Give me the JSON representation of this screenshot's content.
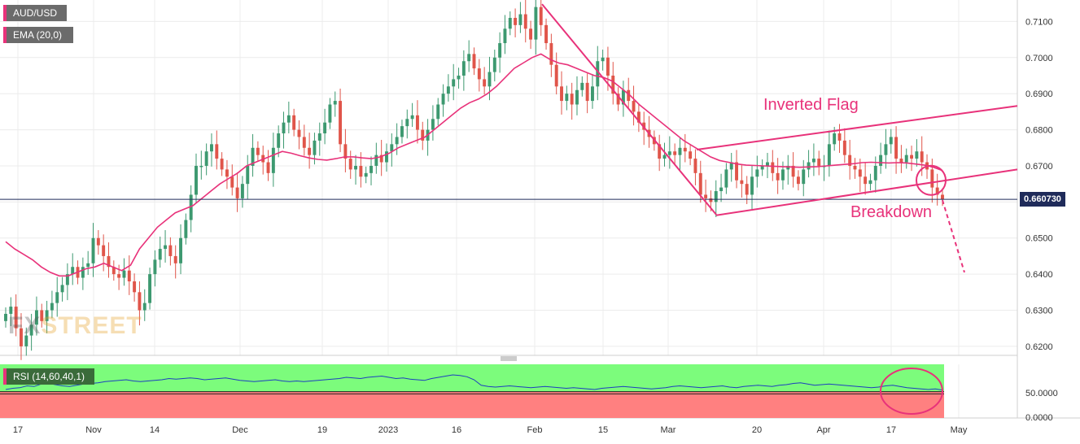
{
  "legend": {
    "pair": "AUD/USD",
    "ema": "EMA (20,0)",
    "rsi": "RSI (14,60,40,1)"
  },
  "colors": {
    "bull": "#3d9970",
    "bear": "#e0554a",
    "ema": "#e8327a",
    "annotation": "#e8327a",
    "rsi_line": "#1d3fbf",
    "rsi_upper_zone": "#7cfc7c",
    "rsi_lower_zone": "#ff8080",
    "price_line": "#1f2b5a"
  },
  "watermark": {
    "fx": "FX",
    "rest": "STREET"
  },
  "annotations": {
    "flag": "Inverted Flag",
    "breakdown": "Breakdown"
  },
  "current_price": "0.660730",
  "chart_data": [
    {
      "type": "candlestick",
      "title": "AUD/USD",
      "x_tick_labels": [
        "17",
        "Nov",
        "14",
        "Dec",
        "19",
        "2023",
        "16",
        "Feb",
        "15",
        "Mar",
        "20",
        "Apr",
        "17",
        "May"
      ],
      "y_ticks": [
        "0.7100",
        "0.7000",
        "0.6900",
        "0.6800",
        "0.6700",
        "0.6600",
        "0.6500",
        "0.6400",
        "0.6300",
        "0.6200"
      ],
      "ylim": [
        0.6175,
        0.7155
      ],
      "grid": true,
      "series": [
        {
          "name": "AUD/USD",
          "close": [
            0.629,
            0.631,
            0.625,
            0.62,
            0.623,
            0.626,
            0.63,
            0.627,
            0.63,
            0.632,
            0.635,
            0.637,
            0.64,
            0.642,
            0.639,
            0.642,
            0.643,
            0.65,
            0.648,
            0.645,
            0.642,
            0.64,
            0.639,
            0.641,
            0.638,
            0.635,
            0.63,
            0.632,
            0.64,
            0.644,
            0.647,
            0.648,
            0.645,
            0.643,
            0.65,
            0.655,
            0.662,
            0.67,
            0.67,
            0.674,
            0.676,
            0.672,
            0.669,
            0.667,
            0.664,
            0.661,
            0.665,
            0.67,
            0.675,
            0.673,
            0.671,
            0.668,
            0.675,
            0.679,
            0.682,
            0.684,
            0.68,
            0.678,
            0.675,
            0.673,
            0.677,
            0.679,
            0.682,
            0.687,
            0.688,
            0.676,
            0.672,
            0.669,
            0.67,
            0.667,
            0.668,
            0.67,
            0.673,
            0.671,
            0.674,
            0.676,
            0.678,
            0.681,
            0.683,
            0.684,
            0.68,
            0.677,
            0.68,
            0.683,
            0.687,
            0.69,
            0.692,
            0.694,
            0.695,
            0.699,
            0.701,
            0.697,
            0.694,
            0.692,
            0.696,
            0.7,
            0.704,
            0.708,
            0.711,
            0.709,
            0.712,
            0.708,
            0.705,
            0.714,
            0.709,
            0.704,
            0.698,
            0.692,
            0.688,
            0.69,
            0.687,
            0.691,
            0.693,
            0.688,
            0.692,
            0.699,
            0.7,
            0.695,
            0.69,
            0.687,
            0.691,
            0.688,
            0.685,
            0.682,
            0.68,
            0.678,
            0.676,
            0.672,
            0.673,
            0.674,
            0.673,
            0.675,
            0.674,
            0.672,
            0.668,
            0.662,
            0.661,
            0.66,
            0.663,
            0.664,
            0.669,
            0.671,
            0.666,
            0.665,
            0.662,
            0.667,
            0.669,
            0.67,
            0.671,
            0.668,
            0.666,
            0.669,
            0.67,
            0.667,
            0.665,
            0.669,
            0.671,
            0.672,
            0.67,
            0.67,
            0.676,
            0.679,
            0.677,
            0.673,
            0.67,
            0.669,
            0.667,
            0.665,
            0.666,
            0.67,
            0.673,
            0.676,
            0.678,
            0.672,
            0.671,
            0.673,
            0.672,
            0.674,
            0.671,
            0.669,
            0.664,
            0.662,
            0.6607
          ],
          "open": [
            0.627,
            0.629,
            0.631,
            0.625,
            0.62,
            0.623,
            0.626,
            0.63,
            0.627,
            0.63,
            0.632,
            0.635,
            0.637,
            0.64,
            0.642,
            0.639,
            0.642,
            0.643,
            0.65,
            0.648,
            0.645,
            0.642,
            0.64,
            0.639,
            0.641,
            0.638,
            0.635,
            0.63,
            0.632,
            0.64,
            0.644,
            0.647,
            0.648,
            0.645,
            0.643,
            0.65,
            0.655,
            0.662,
            0.67,
            0.67,
            0.674,
            0.676,
            0.672,
            0.669,
            0.667,
            0.664,
            0.661,
            0.665,
            0.67,
            0.675,
            0.673,
            0.671,
            0.668,
            0.675,
            0.679,
            0.682,
            0.684,
            0.68,
            0.678,
            0.675,
            0.673,
            0.677,
            0.679,
            0.682,
            0.687,
            0.688,
            0.676,
            0.672,
            0.669,
            0.67,
            0.667,
            0.668,
            0.67,
            0.673,
            0.671,
            0.674,
            0.676,
            0.678,
            0.681,
            0.683,
            0.684,
            0.68,
            0.677,
            0.68,
            0.683,
            0.687,
            0.69,
            0.692,
            0.694,
            0.695,
            0.699,
            0.701,
            0.697,
            0.694,
            0.692,
            0.696,
            0.7,
            0.704,
            0.708,
            0.711,
            0.709,
            0.712,
            0.708,
            0.705,
            0.714,
            0.709,
            0.704,
            0.698,
            0.692,
            0.688,
            0.69,
            0.687,
            0.691,
            0.693,
            0.688,
            0.692,
            0.699,
            0.7,
            0.695,
            0.69,
            0.687,
            0.691,
            0.688,
            0.685,
            0.682,
            0.68,
            0.678,
            0.676,
            0.672,
            0.673,
            0.674,
            0.673,
            0.675,
            0.674,
            0.672,
            0.668,
            0.662,
            0.661,
            0.66,
            0.663,
            0.664,
            0.669,
            0.671,
            0.666,
            0.665,
            0.662,
            0.667,
            0.669,
            0.67,
            0.671,
            0.668,
            0.666,
            0.669,
            0.67,
            0.667,
            0.665,
            0.669,
            0.671,
            0.672,
            0.67,
            0.67,
            0.676,
            0.679,
            0.677,
            0.673,
            0.67,
            0.669,
            0.667,
            0.665,
            0.666,
            0.67,
            0.673,
            0.676,
            0.678,
            0.672,
            0.671,
            0.673,
            0.672,
            0.674,
            0.671,
            0.669,
            0.664,
            0.662
          ]
        },
        {
          "name": "EMA (20,0)",
          "values": [
            0.649,
            0.647,
            0.6455,
            0.644,
            0.642,
            0.6405,
            0.6395,
            0.6395,
            0.6405,
            0.6415,
            0.642,
            0.643,
            0.642,
            0.641,
            0.6425,
            0.647,
            0.65,
            0.653,
            0.655,
            0.657,
            0.658,
            0.659,
            0.661,
            0.663,
            0.665,
            0.6665,
            0.668,
            0.67,
            0.671,
            0.672,
            0.673,
            0.674,
            0.6735,
            0.6728,
            0.6722,
            0.6718,
            0.6716,
            0.672,
            0.6725,
            0.6725,
            0.6722,
            0.672,
            0.6725,
            0.6735,
            0.675,
            0.676,
            0.677,
            0.678,
            0.68,
            0.682,
            0.684,
            0.686,
            0.6875,
            0.6885,
            0.69,
            0.692,
            0.6945,
            0.697,
            0.6985,
            0.7,
            0.701,
            0.6995,
            0.6985,
            0.698,
            0.697,
            0.696,
            0.695,
            0.6945,
            0.6935,
            0.6915,
            0.6895,
            0.687,
            0.685,
            0.683,
            0.681,
            0.679,
            0.677,
            0.6755,
            0.674,
            0.6725,
            0.6715,
            0.671,
            0.6705,
            0.6702,
            0.6701,
            0.67,
            0.6699,
            0.6698,
            0.6697,
            0.6696,
            0.6697,
            0.6698,
            0.67,
            0.6702,
            0.6704,
            0.6706,
            0.6709,
            0.671,
            0.6709,
            0.6708,
            0.6709,
            0.6708,
            0.6705,
            0.6702,
            0.6696,
            0.6687
          ]
        }
      ]
    },
    {
      "type": "line",
      "title": "RSI (14,60,40,1)",
      "y_ticks": [
        "50.0000",
        "0.0000"
      ],
      "ylim": [
        0,
        100
      ],
      "zones": {
        "upper": 60,
        "lower": 40
      },
      "series": [
        {
          "name": "RSI (14,60,40,1)",
          "values": [
            42,
            44,
            45,
            48,
            47,
            51,
            52,
            50,
            48,
            47,
            49,
            51,
            52,
            53,
            55,
            56,
            57,
            58,
            56,
            55,
            56,
            57,
            58,
            60,
            59,
            60,
            61,
            60,
            58,
            59,
            60,
            61,
            59,
            57,
            56,
            55,
            56,
            57,
            58,
            56,
            55,
            56,
            55,
            56,
            57,
            58,
            59,
            60,
            62,
            61,
            60,
            62,
            63,
            64,
            62,
            60,
            61,
            59,
            58,
            57,
            60,
            62,
            64,
            66,
            65,
            63,
            58,
            49,
            47,
            46,
            47,
            48,
            47,
            46,
            45,
            46,
            47,
            46,
            45,
            44,
            45,
            44,
            43,
            42,
            44,
            45,
            46,
            47,
            46,
            45,
            44,
            43,
            44,
            45,
            47,
            48,
            47,
            46,
            45,
            46,
            47,
            48,
            46,
            45,
            47,
            48,
            49,
            48,
            47,
            49,
            50,
            52,
            53,
            51,
            49,
            50,
            51,
            50,
            49,
            48,
            47,
            46,
            45,
            46,
            48,
            49,
            47,
            45,
            44,
            43,
            42,
            43,
            41
          ]
        }
      ]
    }
  ]
}
